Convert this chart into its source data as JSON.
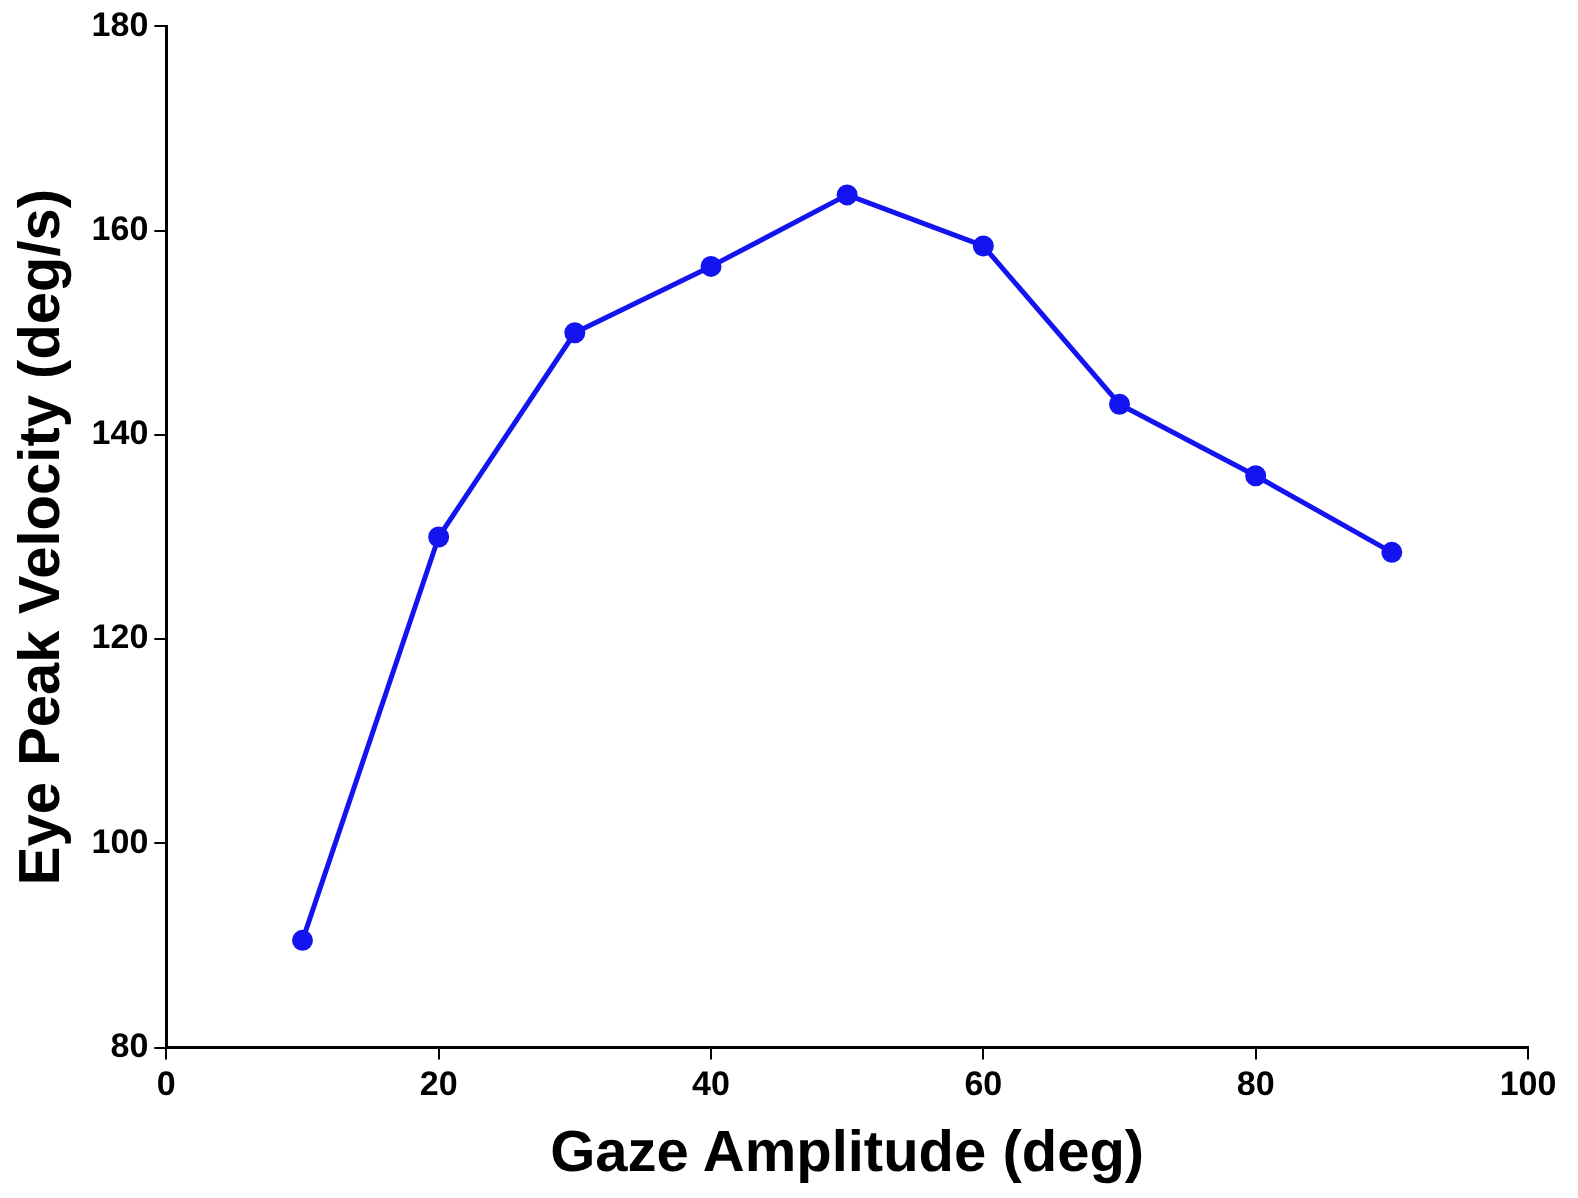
{
  "chart_data": {
    "type": "line",
    "xlabel": "Gaze Amplitude (deg)",
    "ylabel": "Eye Peak Velocity (deg/s)",
    "x": [
      10,
      20,
      30,
      40,
      50,
      60,
      70,
      80,
      90
    ],
    "series": [
      {
        "color": "#1414f0",
        "values": [
          90.5,
          130,
          150,
          156.5,
          163.5,
          158.5,
          143,
          136,
          128.5
        ]
      }
    ],
    "xlim": [
      0,
      100
    ],
    "xticks": [
      0,
      20,
      40,
      60,
      80,
      100
    ],
    "ylim": [
      80,
      180
    ],
    "yticks": [
      80,
      100,
      120,
      140,
      160,
      180
    ],
    "grid": false,
    "legend": false,
    "marker": "circle",
    "line_style": "solid"
  }
}
